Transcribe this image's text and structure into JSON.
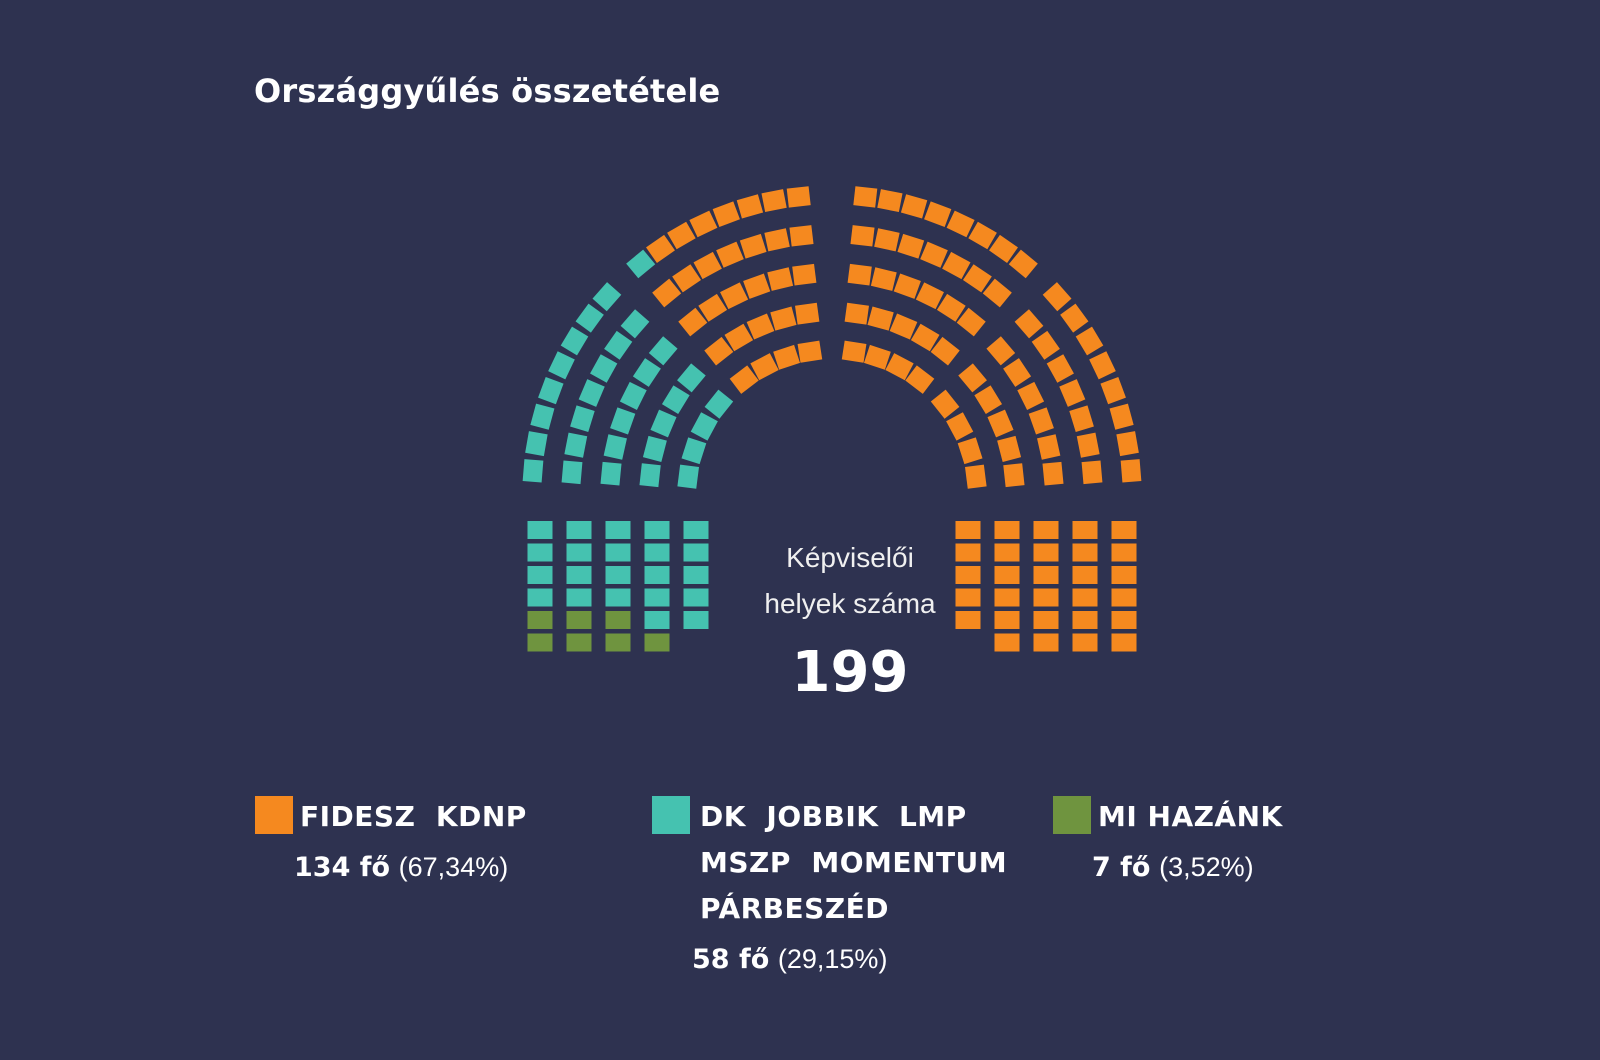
{
  "chart_data": {
    "type": "parliament",
    "title": "Országgyűlés összetétele",
    "center_label_line1": "Képviselői",
    "center_label_line2": "helyek száma",
    "total_seats": "199",
    "parties": [
      {
        "id": "fidesz",
        "name": "FIDESZ  KDNP",
        "seats": 134,
        "seats_label": "134 fő",
        "percent_label": "(67,34%)",
        "color": "#f5891f"
      },
      {
        "id": "opposition",
        "name": "DK  JOBBIK  LMP\nMSZP  MOMENTUM\nPÁRBESZÉD",
        "seats": 58,
        "seats_label": "58 fő",
        "percent_label": "(29,15%)",
        "color": "#45c2b0"
      },
      {
        "id": "mihazank",
        "name": "MI HAZÁNK",
        "seats": 7,
        "seats_label": "7 fő",
        "percent_label": "(3,52%)",
        "color": "#6f943f"
      }
    ]
  }
}
